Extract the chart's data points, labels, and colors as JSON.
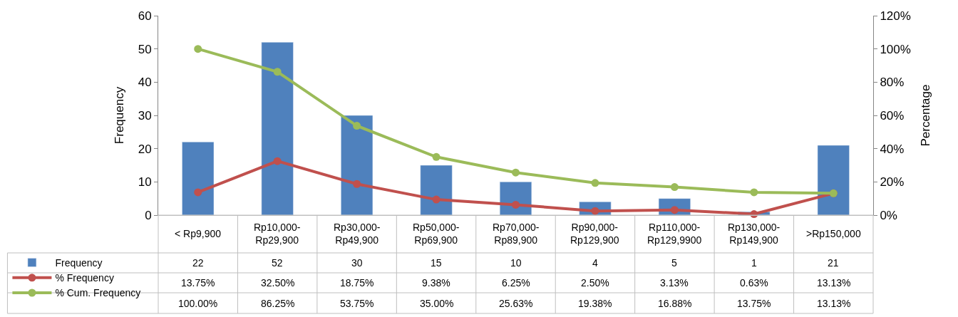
{
  "chart_data": {
    "type": "bar",
    "ylabel": "Frequency",
    "y2label": "Percentage",
    "categories": [
      "< Rp9,900",
      "Rp10,000-Rp29,900",
      "Rp30,000-Rp49,900",
      "Rp50,000-Rp69,900",
      "Rp70,000-Rp89,900",
      "Rp90,000-Rp129,900",
      "Rp110,000-Rp129,9900",
      "Rp130,000-Rp149,900",
      ">Rp150,000"
    ],
    "series": [
      {
        "name": "Frequency",
        "color": "#4f81bd",
        "values": [
          22,
          52,
          30,
          15,
          10,
          4,
          5,
          1,
          21
        ],
        "value_labels": [
          "22",
          "52",
          "30",
          "15",
          "10",
          "4",
          "5",
          "1",
          "21"
        ]
      },
      {
        "name": "% Frequency",
        "type": "line",
        "axis": "y2",
        "color": "#c0504d",
        "values": [
          13.75,
          32.5,
          18.75,
          9.38,
          6.25,
          2.5,
          3.13,
          0.63,
          13.13
        ],
        "value_labels": [
          "13.75%",
          "32.50%",
          "18.75%",
          "9.38%",
          "6.25%",
          "2.50%",
          "3.13%",
          "0.63%",
          "13.13%"
        ]
      },
      {
        "name": "% Cum. Frequency",
        "type": "line",
        "axis": "y2",
        "color": "#9bbb59",
        "values": [
          100,
          86.25,
          53.75,
          35,
          25.63,
          19.38,
          16.88,
          13.75,
          13.13
        ],
        "value_labels": [
          "100.00%",
          "86.25%",
          "53.75%",
          "35.00%",
          "25.63%",
          "19.38%",
          "16.88%",
          "13.75%",
          "13.13%"
        ]
      }
    ],
    "ylim": [
      0,
      60
    ],
    "yticks": [
      0,
      10,
      20,
      30,
      40,
      50,
      60
    ],
    "y2lim": [
      0,
      120
    ],
    "y2ticks": [
      {
        "value": 0,
        "label": "0%"
      },
      {
        "value": 20,
        "label": "20%"
      },
      {
        "value": 40,
        "label": "40%"
      },
      {
        "value": 60,
        "label": "60%"
      },
      {
        "value": 80,
        "label": "80%"
      },
      {
        "value": 100,
        "label": "100%"
      },
      {
        "value": 120,
        "label": "120%"
      }
    ],
    "marker": "circle",
    "legend": "bottom left"
  }
}
